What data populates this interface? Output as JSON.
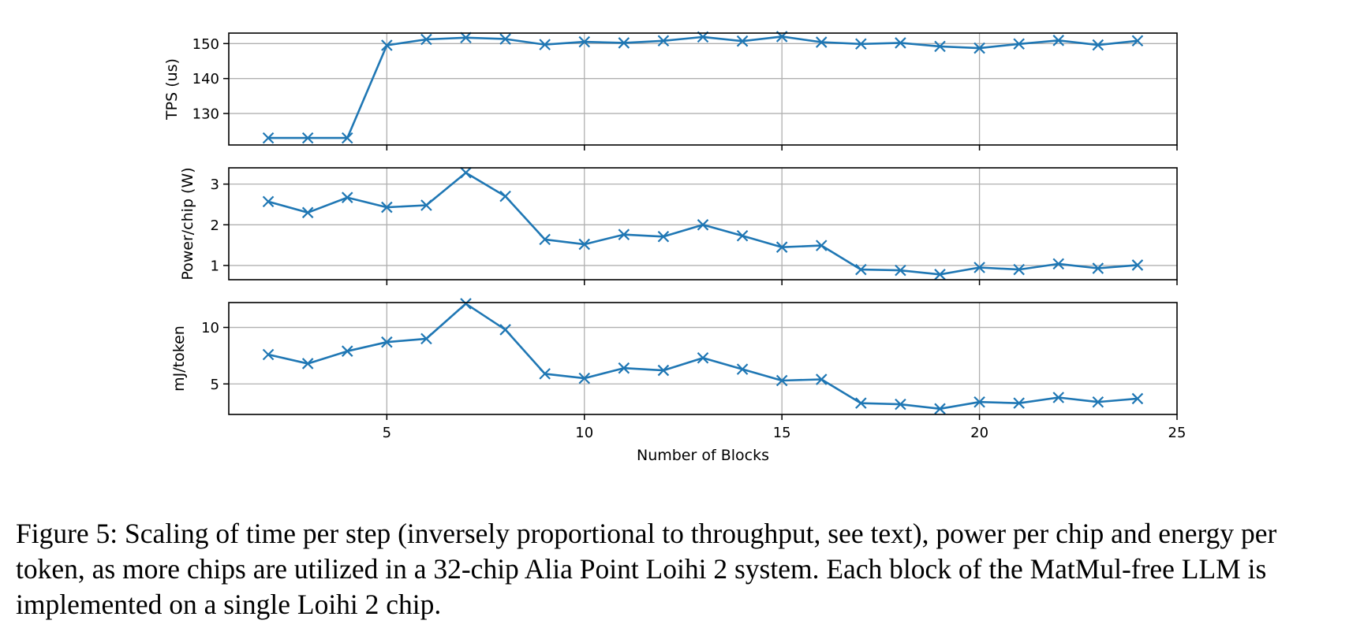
{
  "chart_data": [
    {
      "type": "line",
      "ylabel": "TPS (us)",
      "xlabel": "",
      "xlim": [
        1,
        25
      ],
      "ylim": [
        121,
        153
      ],
      "xticks": [
        5,
        10,
        15,
        20,
        25
      ],
      "yticks": [
        130,
        140,
        150
      ],
      "grid": true,
      "marker": "x",
      "color": "#1f77b4",
      "x": [
        2,
        3,
        4,
        5,
        6,
        7,
        8,
        9,
        10,
        11,
        12,
        13,
        14,
        15,
        16,
        17,
        18,
        19,
        20,
        21,
        22,
        23,
        24
      ],
      "y": [
        123,
        123,
        123,
        149.5,
        151.2,
        151.7,
        151.3,
        149.7,
        150.5,
        150.2,
        150.8,
        151.9,
        150.7,
        152,
        150.4,
        149.9,
        150.2,
        149.2,
        148.7,
        149.9,
        150.9,
        149.6,
        150.8
      ]
    },
    {
      "type": "line",
      "ylabel": "Power/chip (W)",
      "xlabel": "",
      "xlim": [
        1,
        25
      ],
      "ylim": [
        0.65,
        3.4
      ],
      "xticks": [
        5,
        10,
        15,
        20,
        25
      ],
      "yticks": [
        1,
        2,
        3
      ],
      "grid": true,
      "marker": "x",
      "color": "#1f77b4",
      "x": [
        2,
        3,
        4,
        5,
        6,
        7,
        8,
        9,
        10,
        11,
        12,
        13,
        14,
        15,
        16,
        17,
        18,
        19,
        20,
        21,
        22,
        23,
        24
      ],
      "y": [
        2.57,
        2.3,
        2.67,
        2.43,
        2.48,
        3.28,
        2.7,
        1.64,
        1.52,
        1.76,
        1.71,
        2.0,
        1.73,
        1.45,
        1.49,
        0.9,
        0.88,
        0.78,
        0.95,
        0.9,
        1.04,
        0.93,
        1.01
      ]
    },
    {
      "type": "line",
      "ylabel": "mJ/token",
      "xlabel": "Number of Blocks",
      "xlim": [
        1,
        25
      ],
      "ylim": [
        2.3,
        12.2
      ],
      "xticks": [
        5,
        10,
        15,
        20,
        25
      ],
      "yticks": [
        5,
        10
      ],
      "grid": true,
      "marker": "x",
      "color": "#1f77b4",
      "x": [
        2,
        3,
        4,
        5,
        6,
        7,
        8,
        9,
        10,
        11,
        12,
        13,
        14,
        15,
        16,
        17,
        18,
        19,
        20,
        21,
        22,
        23,
        24
      ],
      "y": [
        7.6,
        6.8,
        7.9,
        8.7,
        9.0,
        12.1,
        9.8,
        5.9,
        5.5,
        6.4,
        6.2,
        7.3,
        6.3,
        5.3,
        5.4,
        3.3,
        3.2,
        2.8,
        3.4,
        3.3,
        3.8,
        3.4,
        3.7
      ]
    }
  ],
  "caption": "Figure 5: Scaling of time per step (inversely proportional to throughput, see text), power per chip and energy per token, as more chips are utilized in a 32-chip Alia Point Loihi 2 system. Each block of the MatMul-free LLM is implemented on a single Loihi 2 chip."
}
